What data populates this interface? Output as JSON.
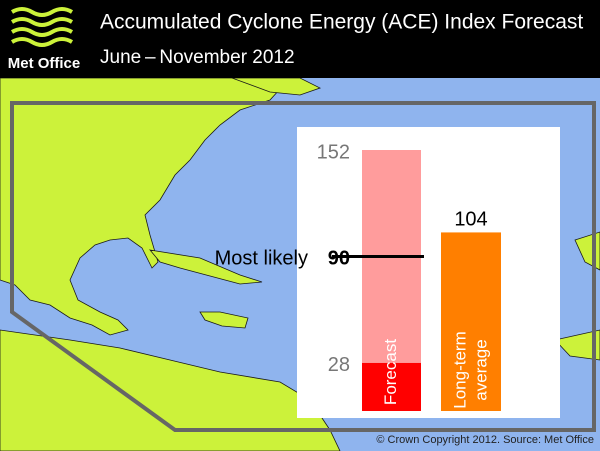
{
  "header": {
    "logo": "Met Office",
    "title": "Accumulated Cyclone Energy (ACE) Index Forecast",
    "subtitle": "June – November 2012"
  },
  "chart_data": {
    "type": "range_bar",
    "forecast": {
      "name": "Forecast",
      "low": 28,
      "likely": 90,
      "high": 152,
      "likely_label": "Most likely",
      "low_color": "#ff0000",
      "range_color": "#ff9c9c",
      "line_color": "#000000"
    },
    "average": {
      "name": [
        "Long-term",
        "average"
      ],
      "value": 104,
      "color": "#ff7f00"
    },
    "ylim": [
      0,
      152
    ]
  },
  "footer": {
    "credit": "© Crown Copyright 2012. Source: Met Office"
  }
}
